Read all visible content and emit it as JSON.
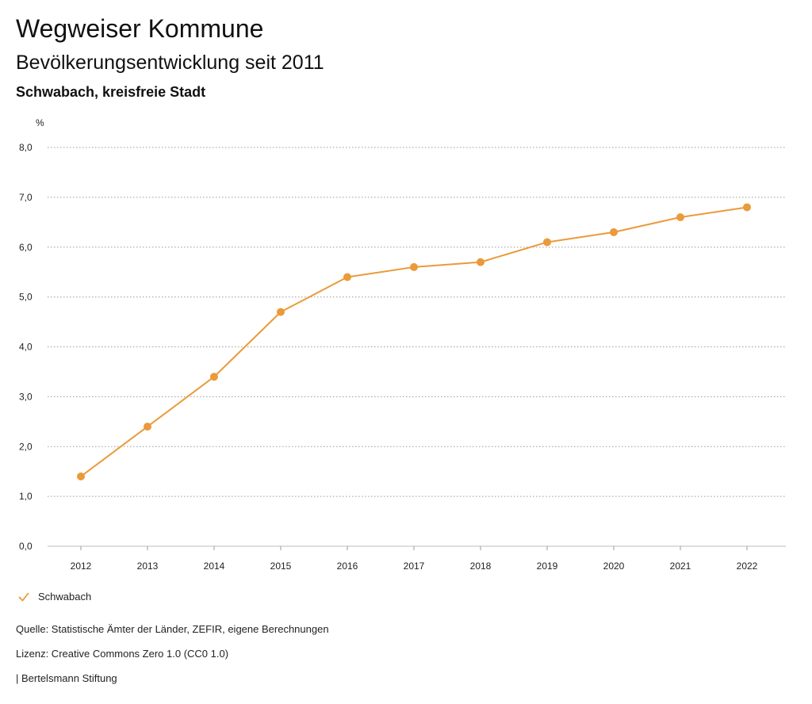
{
  "header": {
    "title": "Wegweiser Kommune",
    "subtitle": "Bevölkerungsentwicklung seit 2011",
    "region": "Schwabach, kreisfreie Stadt"
  },
  "chart_data": {
    "type": "line",
    "title": "Bevölkerungsentwicklung seit 2011",
    "ylabel": "%",
    "xlabel": "",
    "ylim": [
      0,
      8
    ],
    "y_ticks": [
      0,
      1,
      2,
      3,
      4,
      5,
      6,
      7,
      8
    ],
    "y_tick_labels": [
      "0,0",
      "1,0",
      "2,0",
      "3,0",
      "4,0",
      "5,0",
      "6,0",
      "7,0",
      "8,0"
    ],
    "categories": [
      "2012",
      "2013",
      "2014",
      "2015",
      "2016",
      "2017",
      "2018",
      "2019",
      "2020",
      "2021",
      "2022"
    ],
    "series": [
      {
        "name": "Schwabach",
        "color": "#eb9a3a",
        "values": [
          1.4,
          2.4,
          3.4,
          4.7,
          5.4,
          5.6,
          5.7,
          6.1,
          6.3,
          6.6,
          6.8
        ]
      }
    ],
    "grid": true,
    "legend_position": "bottom-left"
  },
  "legend": {
    "label": "Schwabach",
    "icon": "check-icon"
  },
  "footer": {
    "source": "Quelle: Statistische Ämter der Länder, ZEFIR, eigene Berechnungen",
    "license": "Lizenz: Creative Commons Zero 1.0 (CC0 1.0)",
    "publisher": "| Bertelsmann Stiftung"
  }
}
